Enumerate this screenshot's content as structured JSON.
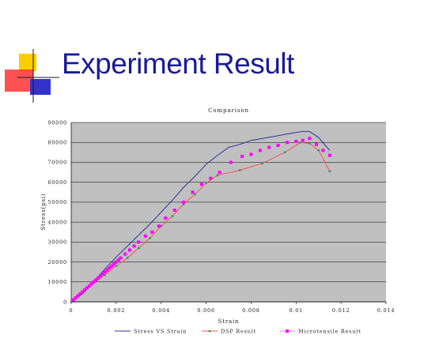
{
  "slide": {
    "title": "Experiment Result"
  },
  "colors": {
    "title": "#1a1a99",
    "plot_bg": "#c0c0c0",
    "grid": "#000000",
    "stress_line": "#333399",
    "dsp_line": "#ff5050",
    "dsp_marker": "#339966",
    "micro_marker": "#ff00ff",
    "logo_yellow": "#ffcc00",
    "logo_red": "#ff3333",
    "logo_blue": "#3333cc"
  },
  "chart_data": {
    "type": "line",
    "title": "Comparison",
    "xlabel": "Strain",
    "ylabel": "Stress(psi)",
    "xlim": [
      0,
      0.014
    ],
    "ylim": [
      0,
      90000
    ],
    "x_ticks": [
      0,
      0.002,
      0.004,
      0.006,
      0.008,
      0.01,
      0.012,
      0.014
    ],
    "x_tick_labels": [
      "0",
      "0.002",
      "0.004",
      "0.006",
      "0.008",
      "0.01",
      "0.012",
      "0.014"
    ],
    "y_ticks": [
      0,
      10000,
      20000,
      30000,
      40000,
      50000,
      60000,
      70000,
      80000,
      90000
    ],
    "y_tick_labels": [
      "0",
      "10000",
      "20000",
      "30000",
      "40000",
      "50000",
      "60000",
      "70000",
      "80000",
      "90000"
    ],
    "grid": "horizontal",
    "legend_position": "bottom",
    "series": [
      {
        "name": "Stress VS Strain",
        "style": "line",
        "x": [
          0,
          0.0005,
          0.001,
          0.0015,
          0.002,
          0.0025,
          0.003,
          0.0035,
          0.004,
          0.0045,
          0.005,
          0.0055,
          0.006,
          0.0065,
          0.007,
          0.0075,
          0.008,
          0.0085,
          0.009,
          0.0095,
          0.01,
          0.0103,
          0.0106,
          0.011,
          0.0113,
          0.0115
        ],
        "values": [
          0,
          4000,
          10000,
          16500,
          22500,
          28000,
          33500,
          39000,
          45000,
          51000,
          57500,
          63000,
          69000,
          73500,
          77500,
          79000,
          81000,
          82000,
          83000,
          84000,
          85000,
          85500,
          85500,
          82500,
          78500,
          76000
        ]
      },
      {
        "name": "DSP Result",
        "style": "line-marker",
        "x": [
          0,
          0.0005,
          0.001,
          0.0015,
          0.002,
          0.0025,
          0.003,
          0.0035,
          0.004,
          0.0045,
          0.005,
          0.0055,
          0.006,
          0.0065,
          0.0075,
          0.0085,
          0.0095,
          0.0102,
          0.0106,
          0.011,
          0.0115
        ],
        "values": [
          0,
          4500,
          9500,
          13500,
          18000,
          22000,
          27000,
          32000,
          38000,
          43000,
          49000,
          54000,
          59500,
          63500,
          66000,
          69500,
          75000,
          80000,
          79500,
          76000,
          65500
        ]
      },
      {
        "name": "Microtensile Result",
        "style": "marker",
        "x": [
          0.0001,
          0.0002,
          0.0003,
          0.0004,
          0.0005,
          0.0006,
          0.0007,
          0.0008,
          0.0009,
          0.001,
          0.0011,
          0.0012,
          0.0013,
          0.0014,
          0.0015,
          0.0016,
          0.0017,
          0.0018,
          0.0019,
          0.002,
          0.0021,
          0.0022,
          0.0024,
          0.0026,
          0.0028,
          0.003,
          0.0033,
          0.0036,
          0.0039,
          0.0042,
          0.0046,
          0.005,
          0.0054,
          0.0058,
          0.0062,
          0.0066,
          0.0071,
          0.0076,
          0.008,
          0.0084,
          0.0088,
          0.0092,
          0.0096,
          0.01,
          0.0103,
          0.0106,
          0.0109,
          0.0112,
          0.0115
        ],
        "values": [
          1000,
          2000,
          3000,
          4000,
          5000,
          6000,
          7000,
          8000,
          9000,
          10000,
          11000,
          12000,
          13000,
          14000,
          15000,
          16000,
          17000,
          18000,
          19000,
          20000,
          21000,
          22000,
          24000,
          26000,
          28000,
          30000,
          33000,
          35000,
          38000,
          42000,
          46000,
          50000,
          55000,
          59000,
          62000,
          65000,
          70000,
          73000,
          74000,
          76000,
          77500,
          78500,
          80000,
          80500,
          81000,
          82000,
          79000,
          76000,
          73500
        ]
      }
    ]
  }
}
